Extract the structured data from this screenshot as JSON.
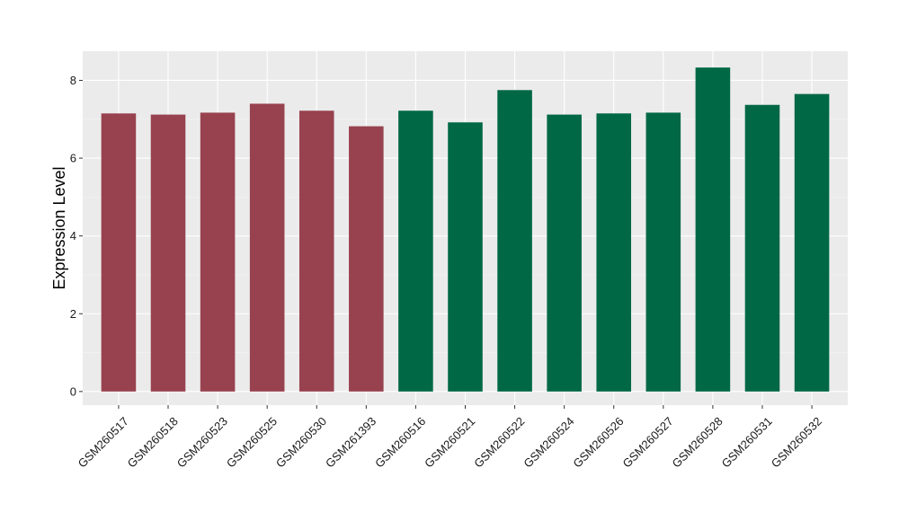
{
  "chart_data": {
    "type": "bar",
    "title": "",
    "xlabel": "",
    "ylabel": "Expression Level",
    "ylim": [
      -0.35,
      8.75
    ],
    "yticks": [
      0,
      2,
      4,
      6,
      8
    ],
    "grid": true,
    "legend": "none",
    "categories": [
      "GSM260517",
      "GSM260518",
      "GSM260523",
      "GSM260525",
      "GSM260530",
      "GSM261393",
      "GSM260516",
      "GSM260521",
      "GSM260522",
      "GSM260524",
      "GSM260526",
      "GSM260527",
      "GSM260528",
      "GSM260531",
      "GSM260532"
    ],
    "values": [
      7.15,
      7.12,
      7.17,
      7.4,
      7.22,
      6.82,
      7.22,
      6.92,
      7.75,
      7.12,
      7.15,
      7.17,
      8.33,
      7.37,
      7.65
    ],
    "groups": [
      0,
      0,
      0,
      0,
      0,
      0,
      1,
      1,
      1,
      1,
      1,
      1,
      1,
      1,
      1
    ]
  },
  "colors": {
    "group_0": "#98424f",
    "group_1": "#006845",
    "panel_background": "#ebebeb",
    "grid_major": "#ffffff",
    "grid_minor": "#f5f5f5"
  }
}
